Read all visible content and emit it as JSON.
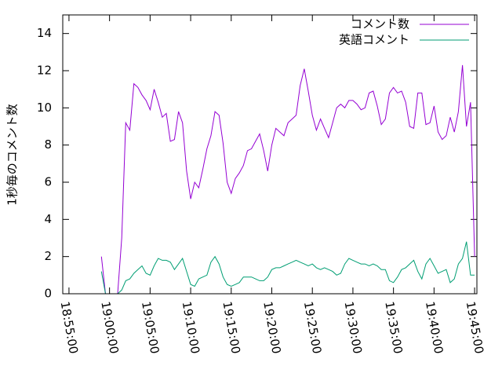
{
  "chart_data": {
    "type": "line",
    "ylabel": "1秒毎のコメント数",
    "x": [
      "18:59:00",
      "18:59:30",
      "19:00:00",
      "19:00:30",
      "19:01:00",
      "19:01:30",
      "19:02:00",
      "19:02:30",
      "19:03:00",
      "19:03:30",
      "19:04:00",
      "19:04:30",
      "19:05:00",
      "19:05:30",
      "19:06:00",
      "19:06:30",
      "19:07:00",
      "19:07:30",
      "19:08:00",
      "19:08:30",
      "19:09:00",
      "19:09:30",
      "19:10:00",
      "19:10:30",
      "19:11:00",
      "19:11:30",
      "19:12:00",
      "19:12:30",
      "19:13:00",
      "19:13:30",
      "19:14:00",
      "19:14:30",
      "19:15:00",
      "19:15:30",
      "19:16:00",
      "19:16:30",
      "19:17:00",
      "19:17:30",
      "19:18:00",
      "19:18:30",
      "19:19:00",
      "19:19:30",
      "19:20:00",
      "19:20:30",
      "19:21:00",
      "19:21:30",
      "19:22:00",
      "19:22:30",
      "19:23:00",
      "19:23:30",
      "19:24:00",
      "19:24:30",
      "19:25:00",
      "19:25:30",
      "19:26:00",
      "19:26:30",
      "19:27:00",
      "19:27:30",
      "19:28:00",
      "19:28:30",
      "19:29:00",
      "19:29:30",
      "19:30:00",
      "19:30:30",
      "19:31:00",
      "19:31:30",
      "19:32:00",
      "19:32:30",
      "19:33:00",
      "19:33:30",
      "19:34:00",
      "19:34:30",
      "19:35:00",
      "19:35:30",
      "19:36:00",
      "19:36:30",
      "19:37:00",
      "19:37:30",
      "19:38:00",
      "19:38:30",
      "19:39:00",
      "19:39:30",
      "19:40:00",
      "19:40:30",
      "19:41:00",
      "19:41:30",
      "19:42:00",
      "19:42:30",
      "19:43:00",
      "19:43:30",
      "19:44:00",
      "19:44:30",
      "19:45:00"
    ],
    "series": [
      {
        "name": "コメント数",
        "color": "#9400d3",
        "values": [
          2,
          0,
          0,
          0,
          0,
          3,
          9.2,
          8.8,
          11.3,
          11.1,
          10.7,
          10.4,
          9.9,
          11,
          10.3,
          9.5,
          9.7,
          8.2,
          8.3,
          9.8,
          9.2,
          6.6,
          5.1,
          6,
          5.7,
          6.7,
          7.8,
          8.5,
          9.8,
          9.6,
          8.1,
          6,
          5.4,
          6.2,
          6.5,
          6.9,
          7.7,
          7.8,
          8.2,
          8.6,
          7.7,
          6.6,
          8,
          8.9,
          8.7,
          8.5,
          9.2,
          9.4,
          9.6,
          11.2,
          12.1,
          10.9,
          9.6,
          8.8,
          9.4,
          8.9,
          8.4,
          9.2,
          10,
          10.2,
          10,
          10.4,
          10.4,
          10.2,
          9.9,
          10,
          10.8,
          10.9,
          10.1,
          9.1,
          9.4,
          10.8,
          11.1,
          10.8,
          10.9,
          10.3,
          9,
          8.9,
          10.8,
          10.8,
          9.1,
          9.2,
          10.1,
          8.7,
          8.3,
          8.5,
          9.5,
          8.7,
          9.8,
          12.3,
          9,
          10.3,
          2
        ]
      },
      {
        "name": "英語コメント",
        "color": "#009e73",
        "values": [
          1.2,
          0,
          0,
          0,
          0,
          0.2,
          0.7,
          0.8,
          1.1,
          1.3,
          1.5,
          1.1,
          1,
          1.5,
          1.9,
          1.8,
          1.8,
          1.7,
          1.3,
          1.6,
          1.9,
          1.2,
          0.5,
          0.4,
          0.8,
          0.9,
          1,
          1.7,
          2,
          1.6,
          0.9,
          0.5,
          0.4,
          0.5,
          0.6,
          0.9,
          0.9,
          0.9,
          0.8,
          0.7,
          0.7,
          0.9,
          1.3,
          1.4,
          1.4,
          1.5,
          1.6,
          1.7,
          1.8,
          1.7,
          1.6,
          1.5,
          1.6,
          1.4,
          1.3,
          1.4,
          1.3,
          1.2,
          1,
          1.1,
          1.6,
          1.9,
          1.8,
          1.7,
          1.6,
          1.6,
          1.5,
          1.6,
          1.5,
          1.3,
          1.3,
          0.7,
          0.6,
          0.9,
          1.3,
          1.4,
          1.6,
          1.8,
          1.2,
          0.8,
          1.6,
          1.9,
          1.5,
          1.1,
          1.2,
          1.3,
          0.6,
          0.8,
          1.6,
          1.9,
          2.8,
          1,
          1
        ]
      }
    ],
    "xlim": [
      "18:54:14",
      "19:45:17"
    ],
    "xticks": [
      "18:55:00",
      "19:00:00",
      "19:05:00",
      "19:10:00",
      "19:15:00",
      "19:20:00",
      "19:25:00",
      "19:30:00",
      "19:35:00",
      "19:40:00",
      "19:45:00"
    ],
    "ylim": [
      0,
      15
    ],
    "yticks": [
      0,
      2,
      4,
      6,
      8,
      10,
      12,
      14
    ],
    "grid": false,
    "legend": "top-right"
  }
}
